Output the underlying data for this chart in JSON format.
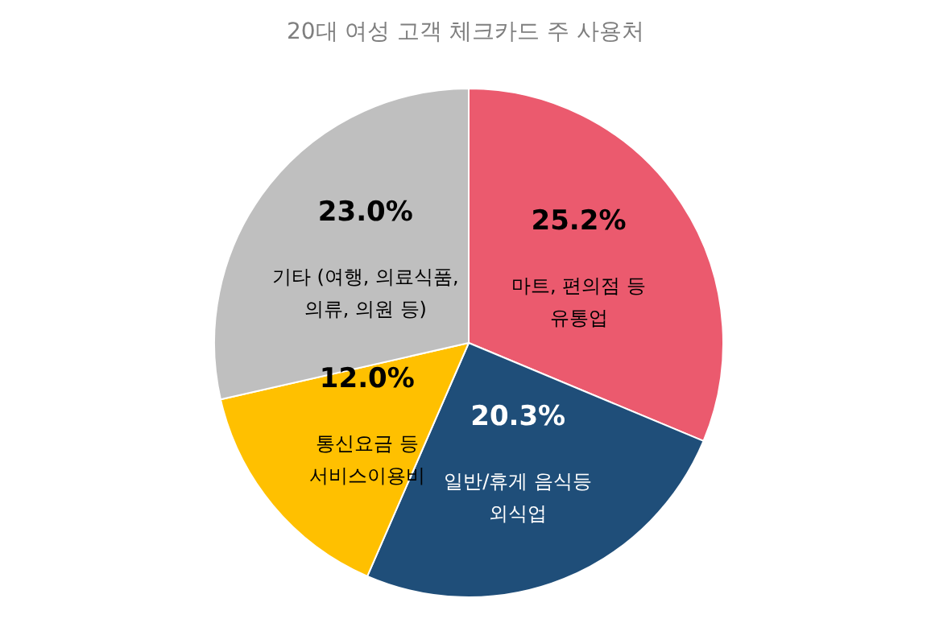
{
  "chart_data": {
    "type": "pie",
    "title": "20대 여성 고객 체크카드 주 사용처",
    "categories": [
      "마트, 편의점 등\n유통업",
      "일반/휴게 음식등\n외식업",
      "통신요금 등\n서비스이용비",
      "기타 (여행, 의료식품,\n의류, 의원 등)"
    ],
    "values": [
      25.2,
      20.3,
      12.0,
      23.0
    ],
    "value_labels": [
      "25.2%",
      "20.3%",
      "12.0%",
      "23.0%"
    ],
    "colors": [
      "#eb5a6e",
      "#1f4e79",
      "#ffc000",
      "#bfbfbf"
    ],
    "legend": false
  }
}
